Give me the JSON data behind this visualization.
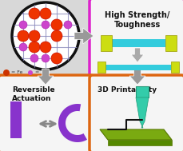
{
  "bg_color": "#d8d8d8",
  "top_right_box": {
    "border_color": "#dd22cc",
    "bg_color": "#f5f5f5",
    "title": "High Strength/\nToughness",
    "dumbbell_bar_color": "#33ccdd",
    "dumbbell_end_color": "#ccdd11",
    "arrow_color": "#aaaaaa"
  },
  "bottom_left_box": {
    "border_color": "#dd6611",
    "bg_color": "#f5f5f5",
    "title": "Reversible\nActuation",
    "rect_color": "#8833cc",
    "arc_color": "#8833cc",
    "arrow_color": "#999999"
  },
  "bottom_right_box": {
    "border_color": "#dd6611",
    "bg_color": "#f5f5f5",
    "title": "3D Printability",
    "platform_color": "#7aaa11",
    "nozzle_color": "#33ccaa",
    "line_color": "#111111"
  },
  "circle": {
    "fill": "#ffffff",
    "border": "#111111",
    "grid_color": "#8888bb",
    "large_color": "#ee3300",
    "small_color": "#cc44cc"
  },
  "main_arrow_color": "#999999"
}
